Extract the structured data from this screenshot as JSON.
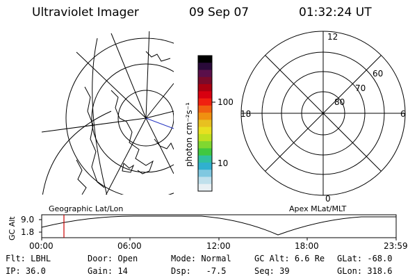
{
  "header": {
    "title": "Ultraviolet Imager",
    "date": "09 Sep 07",
    "time": "01:32:24 UT"
  },
  "colorbar": {
    "unit_label": "photon cm⁻²s⁻¹",
    "ticks": [
      "100",
      "10"
    ],
    "colors": [
      "#000000",
      "#2a0a3a",
      "#5a0f4a",
      "#7a0a2a",
      "#aa0010",
      "#d80010",
      "#f02010",
      "#f06010",
      "#f09010",
      "#e8c020",
      "#e8e020",
      "#c0e020",
      "#80d830",
      "#40c840",
      "#30c0a0",
      "#30b0d0",
      "#80c8e0",
      "#c0e0ec",
      "#e8f0f4"
    ]
  },
  "left_map": {
    "label": "Geographic Lat/Lon"
  },
  "right_dial": {
    "label": "Apex MLat/MLT",
    "mlt_labels": {
      "top": "12",
      "bottom": "0",
      "left": "18",
      "right": "6"
    },
    "lat_labels": [
      "60",
      "70",
      "80"
    ]
  },
  "altitude_panel": {
    "ylabel": "GC Alt",
    "yticks": [
      "9.0",
      "1.8"
    ],
    "xticks": [
      "00:00",
      "06:00",
      "12:00",
      "18:00",
      "23:59"
    ],
    "marker_color": "#cc0000"
  },
  "info": {
    "row1": [
      {
        "label": "Flt:",
        "value": "LBHL"
      },
      {
        "label": "Door:",
        "value": "Open"
      },
      {
        "label": "Mode:",
        "value": "Normal"
      },
      {
        "label": "GC Alt:",
        "value": "6.6 Re"
      },
      {
        "label": "GLat:",
        "value": "-68.0"
      }
    ],
    "row2": [
      {
        "label": "IP:",
        "value": "36.0"
      },
      {
        "label": "Gain:",
        "value": "14"
      },
      {
        "label": "Dsp:",
        "value": "-7.5"
      },
      {
        "label": "Seq:",
        "value": "39"
      },
      {
        "label": "GLon:",
        "value": "318.6"
      }
    ]
  }
}
